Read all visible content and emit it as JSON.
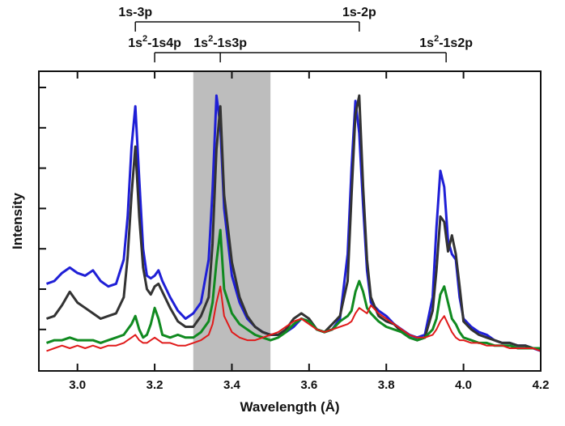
{
  "chart_data": {
    "type": "line",
    "title": "",
    "xlabel": "Wavelength (Å)",
    "ylabel": "Intensity",
    "xlim": [
      2.9,
      4.2
    ],
    "ylim": [
      0,
      1
    ],
    "x_ticks": [
      "3.0",
      "3.2",
      "3.4",
      "3.6",
      "3.8",
      "4.0",
      "4.2"
    ],
    "x_tick_values": [
      3.0,
      3.2,
      3.4,
      3.6,
      3.8,
      4.0,
      4.2
    ],
    "y_tick_labels_shown": false,
    "grid": false,
    "legend": null,
    "shaded_band": {
      "x_start": 3.3,
      "x_end": 3.5,
      "color": "#bdbdbd"
    },
    "annotations": {
      "upper_bracket": {
        "left_label": "1s-3p",
        "left_x": 3.15,
        "right_label": "1s-2p",
        "right_x": 3.73
      },
      "lower_bracket": {
        "labels": [
          {
            "base": "1s",
            "sup": "2",
            "rest": "-1s4p",
            "x": 3.2
          },
          {
            "base": "1s",
            "sup": "2",
            "rest": "-1s3p",
            "x": 3.37
          },
          {
            "base": "1s",
            "sup": "2",
            "rest": "-1s2p",
            "x": 3.955
          }
        ]
      }
    },
    "series": [
      {
        "color": "#1f1fd6",
        "x": [
          2.92,
          2.94,
          2.96,
          2.98,
          3.0,
          3.02,
          3.04,
          3.06,
          3.08,
          3.1,
          3.12,
          3.13,
          3.14,
          3.15,
          3.16,
          3.17,
          3.18,
          3.19,
          3.2,
          3.21,
          3.22,
          3.24,
          3.26,
          3.28,
          3.3,
          3.32,
          3.34,
          3.35,
          3.36,
          3.37,
          3.38,
          3.4,
          3.42,
          3.44,
          3.46,
          3.48,
          3.5,
          3.52,
          3.54,
          3.56,
          3.58,
          3.6,
          3.62,
          3.64,
          3.66,
          3.68,
          3.7,
          3.71,
          3.72,
          3.73,
          3.74,
          3.75,
          3.76,
          3.78,
          3.8,
          3.82,
          3.84,
          3.86,
          3.88,
          3.9,
          3.92,
          3.93,
          3.94,
          3.95,
          3.96,
          3.97,
          3.98,
          3.99,
          4.0,
          4.02,
          4.04,
          4.06,
          4.08,
          4.1,
          4.12,
          4.14,
          4.16,
          4.18,
          4.2
        ],
        "y": [
          0.27,
          0.28,
          0.31,
          0.33,
          0.31,
          0.3,
          0.32,
          0.28,
          0.26,
          0.27,
          0.36,
          0.52,
          0.78,
          0.93,
          0.66,
          0.4,
          0.3,
          0.29,
          0.3,
          0.32,
          0.28,
          0.22,
          0.17,
          0.14,
          0.16,
          0.2,
          0.36,
          0.62,
          0.97,
          0.86,
          0.55,
          0.3,
          0.2,
          0.14,
          0.11,
          0.09,
          0.08,
          0.08,
          0.09,
          0.11,
          0.14,
          0.13,
          0.1,
          0.09,
          0.1,
          0.14,
          0.38,
          0.7,
          0.95,
          0.83,
          0.56,
          0.32,
          0.2,
          0.17,
          0.15,
          0.12,
          0.1,
          0.08,
          0.07,
          0.08,
          0.22,
          0.48,
          0.69,
          0.63,
          0.43,
          0.38,
          0.36,
          0.22,
          0.14,
          0.11,
          0.09,
          0.08,
          0.06,
          0.05,
          0.05,
          0.04,
          0.04,
          0.03,
          0.02
        ]
      },
      {
        "color": "#333333",
        "x": [
          2.92,
          2.94,
          2.96,
          2.98,
          3.0,
          3.02,
          3.04,
          3.06,
          3.08,
          3.1,
          3.12,
          3.13,
          3.14,
          3.15,
          3.16,
          3.17,
          3.18,
          3.19,
          3.2,
          3.21,
          3.22,
          3.24,
          3.26,
          3.28,
          3.3,
          3.32,
          3.34,
          3.35,
          3.36,
          3.37,
          3.38,
          3.4,
          3.42,
          3.44,
          3.46,
          3.48,
          3.5,
          3.52,
          3.54,
          3.56,
          3.58,
          3.6,
          3.62,
          3.64,
          3.66,
          3.68,
          3.7,
          3.71,
          3.72,
          3.73,
          3.74,
          3.75,
          3.76,
          3.78,
          3.8,
          3.82,
          3.84,
          3.86,
          3.88,
          3.9,
          3.92,
          3.93,
          3.94,
          3.95,
          3.96,
          3.97,
          3.98,
          3.99,
          4.0,
          4.02,
          4.04,
          4.06,
          4.08,
          4.1,
          4.12,
          4.14,
          4.16,
          4.18,
          4.2
        ],
        "y": [
          0.14,
          0.15,
          0.19,
          0.24,
          0.2,
          0.18,
          0.16,
          0.14,
          0.15,
          0.16,
          0.22,
          0.37,
          0.6,
          0.78,
          0.52,
          0.33,
          0.25,
          0.23,
          0.26,
          0.27,
          0.24,
          0.18,
          0.13,
          0.11,
          0.11,
          0.15,
          0.22,
          0.42,
          0.77,
          0.93,
          0.6,
          0.35,
          0.22,
          0.15,
          0.11,
          0.09,
          0.08,
          0.08,
          0.1,
          0.14,
          0.16,
          0.14,
          0.1,
          0.09,
          0.12,
          0.15,
          0.28,
          0.6,
          0.9,
          0.97,
          0.63,
          0.36,
          0.22,
          0.15,
          0.13,
          0.12,
          0.09,
          0.07,
          0.06,
          0.07,
          0.17,
          0.32,
          0.52,
          0.5,
          0.39,
          0.45,
          0.38,
          0.26,
          0.13,
          0.1,
          0.08,
          0.07,
          0.06,
          0.05,
          0.05,
          0.04,
          0.04,
          0.03,
          0.03
        ]
      },
      {
        "color": "#108a20",
        "x": [
          2.92,
          2.94,
          2.96,
          2.98,
          3.0,
          3.02,
          3.04,
          3.06,
          3.08,
          3.1,
          3.12,
          3.13,
          3.14,
          3.15,
          3.16,
          3.17,
          3.18,
          3.19,
          3.2,
          3.21,
          3.22,
          3.24,
          3.26,
          3.28,
          3.3,
          3.32,
          3.34,
          3.35,
          3.36,
          3.37,
          3.38,
          3.4,
          3.42,
          3.44,
          3.46,
          3.48,
          3.5,
          3.52,
          3.54,
          3.56,
          3.58,
          3.6,
          3.62,
          3.64,
          3.66,
          3.68,
          3.7,
          3.71,
          3.72,
          3.73,
          3.74,
          3.75,
          3.76,
          3.78,
          3.8,
          3.82,
          3.84,
          3.86,
          3.88,
          3.9,
          3.92,
          3.93,
          3.94,
          3.95,
          3.96,
          3.97,
          3.98,
          3.99,
          4.0,
          4.02,
          4.04,
          4.06,
          4.08,
          4.1,
          4.12,
          4.14,
          4.16,
          4.18,
          4.2
        ],
        "y": [
          0.05,
          0.06,
          0.06,
          0.07,
          0.06,
          0.06,
          0.06,
          0.05,
          0.06,
          0.07,
          0.08,
          0.1,
          0.12,
          0.15,
          0.1,
          0.07,
          0.08,
          0.12,
          0.18,
          0.14,
          0.08,
          0.07,
          0.08,
          0.07,
          0.07,
          0.09,
          0.13,
          0.2,
          0.35,
          0.47,
          0.25,
          0.16,
          0.12,
          0.1,
          0.08,
          0.07,
          0.06,
          0.07,
          0.09,
          0.12,
          0.14,
          0.13,
          0.1,
          0.09,
          0.1,
          0.13,
          0.15,
          0.17,
          0.24,
          0.28,
          0.24,
          0.18,
          0.16,
          0.13,
          0.11,
          0.1,
          0.09,
          0.07,
          0.06,
          0.07,
          0.1,
          0.14,
          0.23,
          0.26,
          0.2,
          0.14,
          0.12,
          0.09,
          0.07,
          0.06,
          0.05,
          0.05,
          0.04,
          0.04,
          0.04,
          0.03,
          0.03,
          0.03,
          0.03
        ]
      },
      {
        "color": "#e01a1a",
        "x": [
          2.92,
          2.94,
          2.96,
          2.98,
          3.0,
          3.02,
          3.04,
          3.06,
          3.08,
          3.1,
          3.12,
          3.13,
          3.14,
          3.15,
          3.16,
          3.17,
          3.18,
          3.19,
          3.2,
          3.21,
          3.22,
          3.24,
          3.26,
          3.28,
          3.3,
          3.32,
          3.34,
          3.35,
          3.36,
          3.37,
          3.38,
          3.4,
          3.42,
          3.44,
          3.46,
          3.48,
          3.5,
          3.52,
          3.54,
          3.56,
          3.58,
          3.6,
          3.62,
          3.64,
          3.66,
          3.68,
          3.7,
          3.71,
          3.72,
          3.73,
          3.74,
          3.75,
          3.76,
          3.78,
          3.8,
          3.82,
          3.84,
          3.86,
          3.88,
          3.9,
          3.92,
          3.93,
          3.94,
          3.95,
          3.96,
          3.97,
          3.98,
          3.99,
          4.0,
          4.02,
          4.04,
          4.06,
          4.08,
          4.1,
          4.12,
          4.14,
          4.16,
          4.18,
          4.2
        ],
        "y": [
          0.02,
          0.03,
          0.04,
          0.03,
          0.04,
          0.03,
          0.04,
          0.03,
          0.04,
          0.04,
          0.05,
          0.06,
          0.07,
          0.08,
          0.06,
          0.05,
          0.05,
          0.06,
          0.07,
          0.06,
          0.05,
          0.05,
          0.04,
          0.04,
          0.05,
          0.06,
          0.08,
          0.12,
          0.2,
          0.26,
          0.15,
          0.09,
          0.07,
          0.06,
          0.06,
          0.07,
          0.08,
          0.09,
          0.11,
          0.13,
          0.14,
          0.12,
          0.1,
          0.09,
          0.1,
          0.11,
          0.12,
          0.13,
          0.16,
          0.18,
          0.17,
          0.16,
          0.19,
          0.16,
          0.14,
          0.12,
          0.1,
          0.08,
          0.07,
          0.07,
          0.08,
          0.1,
          0.13,
          0.15,
          0.12,
          0.09,
          0.07,
          0.06,
          0.06,
          0.05,
          0.05,
          0.04,
          0.04,
          0.04,
          0.03,
          0.03,
          0.03,
          0.03,
          0.02
        ]
      }
    ]
  }
}
